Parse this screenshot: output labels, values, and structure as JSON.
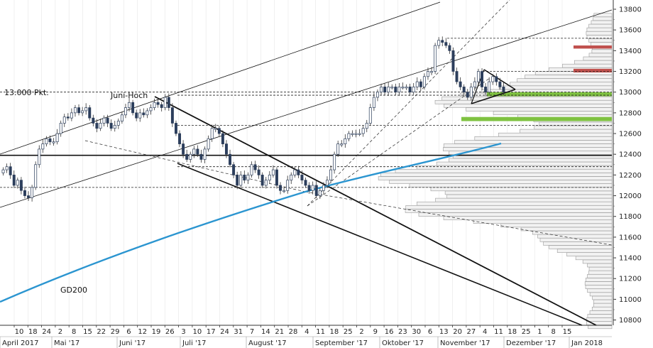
{
  "chart_data": {
    "type": "candlestick",
    "title": "",
    "xlabel": "",
    "ylabel": "",
    "ylim": [
      10720,
      13900
    ],
    "y_ticks": [
      10800,
      11000,
      11200,
      11400,
      11600,
      11800,
      12000,
      12200,
      12400,
      12600,
      12800,
      13000,
      13200,
      13400,
      13600,
      13800
    ],
    "y_tick_labels": [
      "10800",
      "11000",
      "11200",
      "11400",
      "11600",
      "11800",
      "12000",
      "12200",
      "12400",
      "12600",
      "12800",
      "13000",
      "13200",
      "13400",
      "13600",
      "13800"
    ],
    "x_day_ticks": [
      "10",
      "18",
      "24",
      "2",
      "8",
      "15",
      "22",
      "29",
      "6",
      "12",
      "19",
      "26",
      "3",
      "10",
      "17",
      "24",
      "31",
      "7",
      "14",
      "21",
      "28",
      "4",
      "11",
      "18",
      "25",
      "2",
      "9",
      "16",
      "23",
      "30",
      "6",
      "13",
      "20",
      "27",
      "4",
      "11",
      "18",
      "25",
      "1",
      "8",
      "15"
    ],
    "x_month_labels": [
      "April 2017",
      "Mai '17",
      "Juni '17",
      "Juli '17",
      "August '17",
      "September '17",
      "Oktober '17",
      "November '17",
      "Dezember '17",
      "Jan 2018"
    ],
    "annotations": {
      "level_label": "13.000 Pkt.",
      "high_label": "Juni-Hoch",
      "ma_label": "GD200"
    },
    "horizontal_levels": [
      12390,
      13000,
      12080,
      12680,
      12280,
      13520,
      13200,
      12970,
      13030
    ],
    "resistance_zones": [
      {
        "low": 13420,
        "high": 13450,
        "color": "#c0504d"
      },
      {
        "low": 13190,
        "high": 13225,
        "color": "#c0504d"
      }
    ],
    "support_zones": [
      {
        "low": 12960,
        "high": 13000,
        "color": "#7fc241"
      },
      {
        "low": 12720,
        "high": 12760,
        "color": "#7fc241"
      }
    ],
    "ma200": {
      "name": "GD200",
      "color": "#2b95d0",
      "start": 10970,
      "end": 12500
    },
    "closes": [
      12250,
      12280,
      12200,
      12100,
      12150,
      12050,
      12000,
      11980,
      12080,
      12300,
      12450,
      12500,
      12550,
      12520,
      12520,
      12600,
      12700,
      12760,
      12750,
      12800,
      12850,
      12800,
      12820,
      12850,
      12750,
      12700,
      12650,
      12700,
      12750,
      12700,
      12650,
      12680,
      12720,
      12780,
      12850,
      12900,
      12800,
      12750,
      12800,
      12780,
      12820,
      12850,
      12900,
      12880,
      12850,
      12950,
      12850,
      12700,
      12600,
      12500,
      12400,
      12350,
      12400,
      12450,
      12400,
      12350,
      12450,
      12550,
      12650,
      12650,
      12600,
      12500,
      12400,
      12300,
      12200,
      12100,
      12200,
      12150,
      12200,
      12300,
      12250,
      12200,
      12100,
      12150,
      12200,
      12250,
      12100,
      12050,
      12050,
      12150,
      12200,
      12250,
      12200,
      12150,
      12100,
      12050,
      12100,
      12000,
      12050,
      12100,
      12150,
      12250,
      12400,
      12500,
      12500,
      12550,
      12600,
      12600,
      12600,
      12600,
      12650,
      12700,
      12850,
      12950,
      13000,
      13050,
      13000,
      13050,
      13050,
      13000,
      13050,
      13050,
      13050,
      13000,
      13050,
      13100,
      13050,
      13150,
      13200,
      13200,
      13450,
      13500,
      13480,
      13450,
      13400,
      13200,
      13100,
      13050,
      13000,
      12950,
      13050,
      13100,
      13200,
      13050,
      13000,
      13100,
      13150,
      13100,
      13050,
      13000
    ]
  }
}
